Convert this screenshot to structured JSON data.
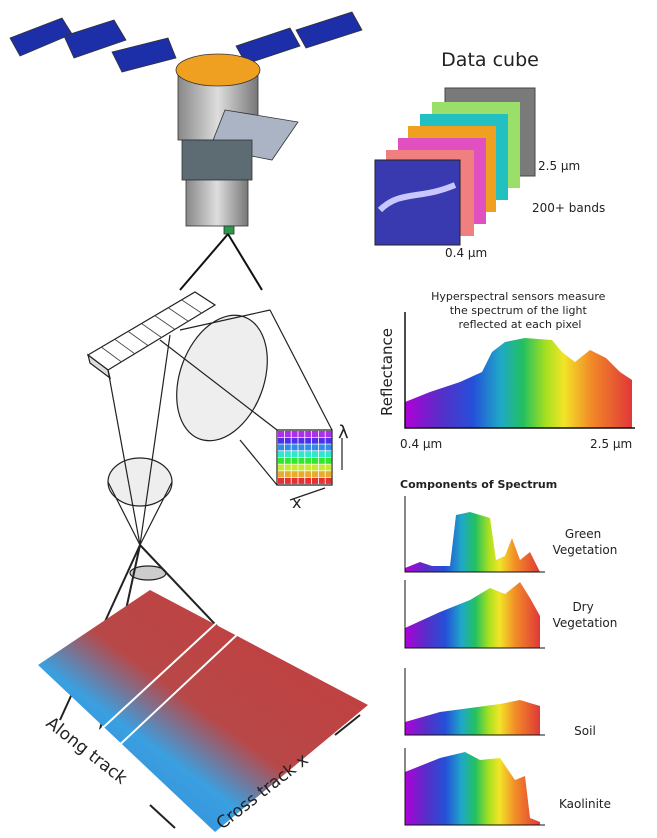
{
  "data_cube": {
    "title": "Data cube",
    "max_wavelength": "2.5 μm",
    "bands": "200+ bands",
    "min_wavelength": "0.4 μm"
  },
  "sensor": {
    "wavelength_axis": "λ",
    "cross_axis": "x"
  },
  "ground": {
    "along_track": "Along track",
    "cross_track": "Cross track x"
  },
  "spectrum": {
    "caption_lines": [
      "Hyperspectral sensors measure",
      "the spectrum of the light",
      "reflected at each pixel"
    ],
    "y_label": "Reflectance",
    "x_start": "0.4 μm",
    "x_end": "2.5 μm"
  },
  "components": {
    "title": "Components of Spectrum",
    "items": [
      {
        "label_lines": [
          "Green",
          "Vegetation"
        ]
      },
      {
        "label_lines": [
          "Dry",
          "Vegetation"
        ]
      },
      {
        "label_lines": [
          "Soil"
        ]
      },
      {
        "label_lines": [
          "Kaolinite"
        ]
      }
    ]
  }
}
